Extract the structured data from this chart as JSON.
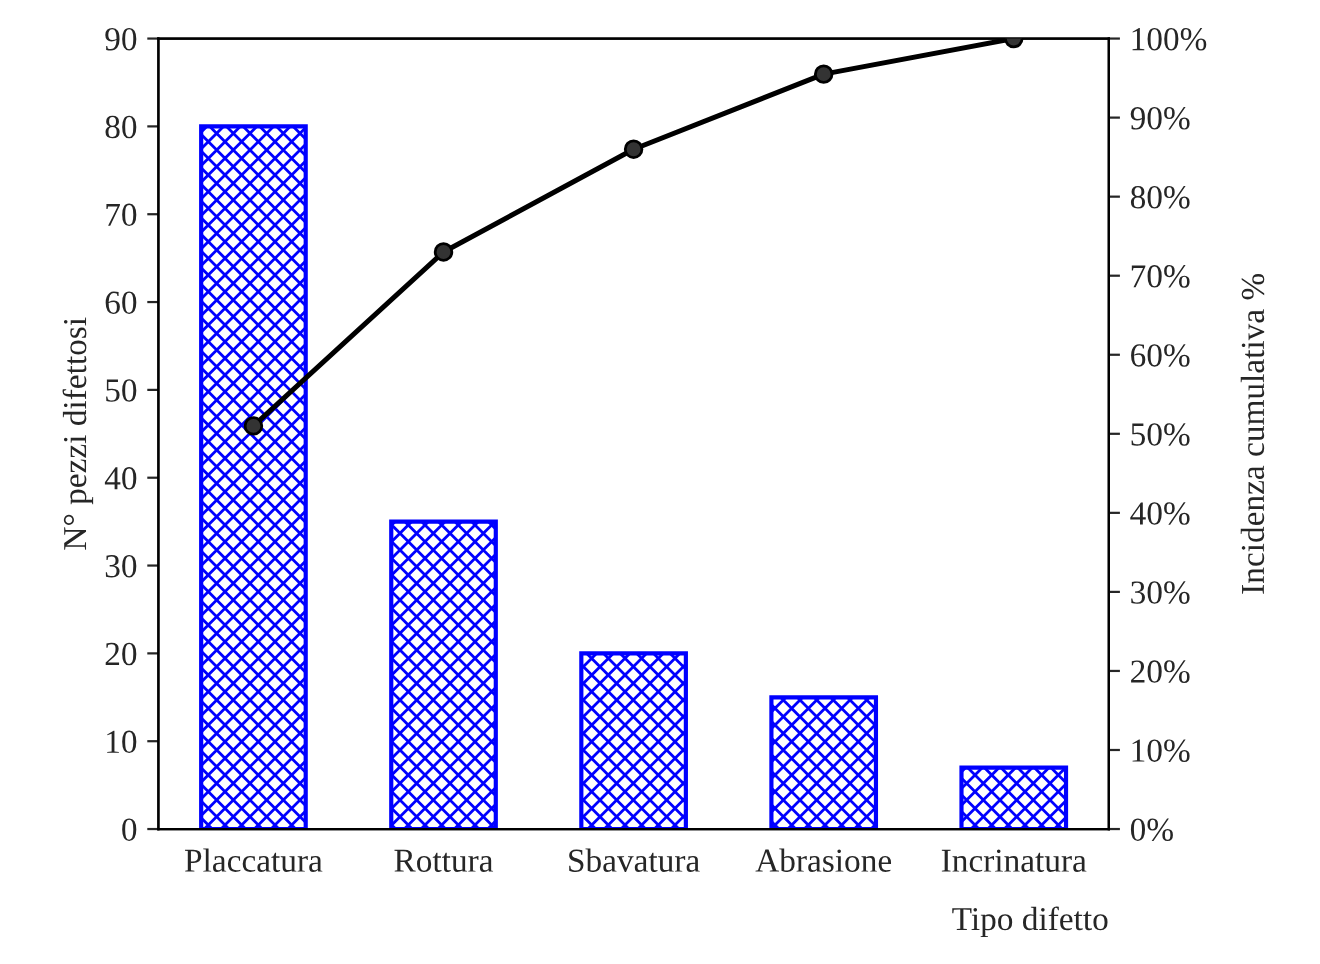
{
  "chart_data": {
    "type": "bar",
    "xlabel": "Tipo difetto",
    "ylabel": "N° pezzi difettosi",
    "y2label": "Incidenza cumulativa %",
    "categories": [
      "Placcatura",
      "Rottura",
      "Sbavatura",
      "Abrasione",
      "Incrinatura"
    ],
    "series": [
      {
        "color": "#0000ff",
        "values": [
          80,
          35,
          20,
          15,
          7
        ]
      },
      {
        "type": "line",
        "axis": "y2",
        "color": "#000000",
        "values": [
          51,
          73,
          86,
          95.5,
          100
        ]
      }
    ],
    "ylim": [
      0,
      90
    ],
    "yticks": [
      0,
      10,
      20,
      30,
      40,
      50,
      60,
      70,
      80,
      90
    ],
    "y2lim": [
      0,
      100
    ],
    "y2ticks": [
      {
        "value": 0,
        "label": "0%"
      },
      {
        "value": 10,
        "label": "10%"
      },
      {
        "value": 20,
        "label": "20%"
      },
      {
        "value": 30,
        "label": "30%"
      },
      {
        "value": 40,
        "label": "40%"
      },
      {
        "value": 50,
        "label": "50%"
      },
      {
        "value": 60,
        "label": "60%"
      },
      {
        "value": 70,
        "label": "70%"
      },
      {
        "value": 80,
        "label": "80%"
      },
      {
        "value": 90,
        "label": "90%"
      },
      {
        "value": 100,
        "label": "100%"
      }
    ],
    "marker": "circle",
    "line_style": "solid",
    "grid": false,
    "legend": false
  }
}
